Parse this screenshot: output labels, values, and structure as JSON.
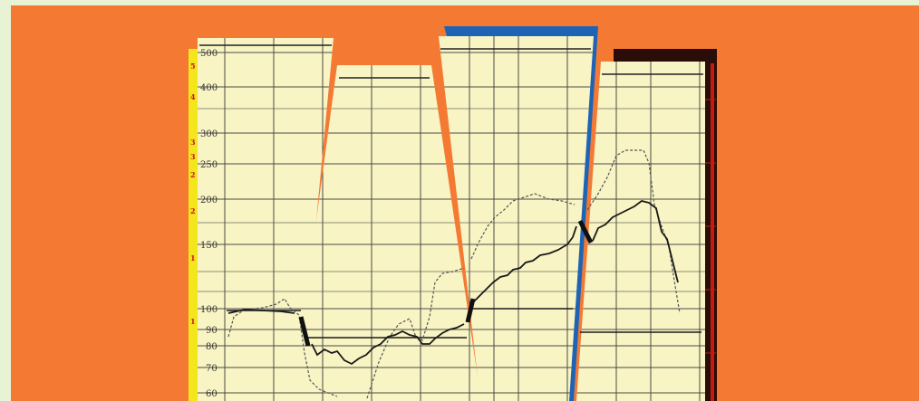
{
  "image": {
    "y_tick_labels": [
      "500",
      "400",
      "300",
      "250",
      "200",
      "150",
      "100",
      "90",
      "80",
      "70",
      "60"
    ],
    "red_scale_labels": [
      "5",
      "4",
      "3",
      "3",
      "2",
      "2",
      "1",
      "1"
    ],
    "colors": {
      "background": "#f47a34",
      "border": "#e8f3d6",
      "paper": "#f8f4c4",
      "grid": "#4a4a44",
      "blue_band": "#1f64b4",
      "dark_band": "#2a0c08",
      "yellow_strip": "#f3e61c",
      "solid_line": "#1a1a1a",
      "dashed_line": "#555555"
    }
  }
}
